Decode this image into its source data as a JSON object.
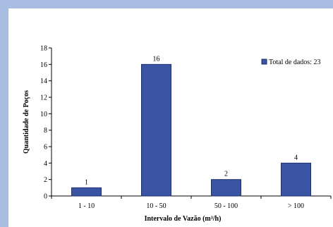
{
  "colors": {
    "frame": "#a9bde3",
    "bar_fill": "#3a54a4",
    "bar_stroke": "#1f2f6b",
    "axis": "#000000"
  },
  "chart_data": {
    "type": "bar",
    "categories": [
      "1 - 10",
      "10 - 50",
      "50 - 100",
      "> 100"
    ],
    "series": [
      {
        "name": "Total de dados: 23",
        "values": [
          1,
          16,
          2,
          4
        ]
      }
    ],
    "data_labels": [
      "1",
      "16",
      "2",
      "4"
    ],
    "xlabel": "Intervalo de Vazão (m³/h)",
    "ylabel": "Quantidade de Poços",
    "ylim": [
      0,
      18
    ],
    "yticks": [
      0,
      2,
      4,
      6,
      8,
      10,
      12,
      14,
      16,
      18
    ],
    "grid": false,
    "legend": {
      "position": "top-right",
      "label": "Total de dados: 23"
    }
  }
}
